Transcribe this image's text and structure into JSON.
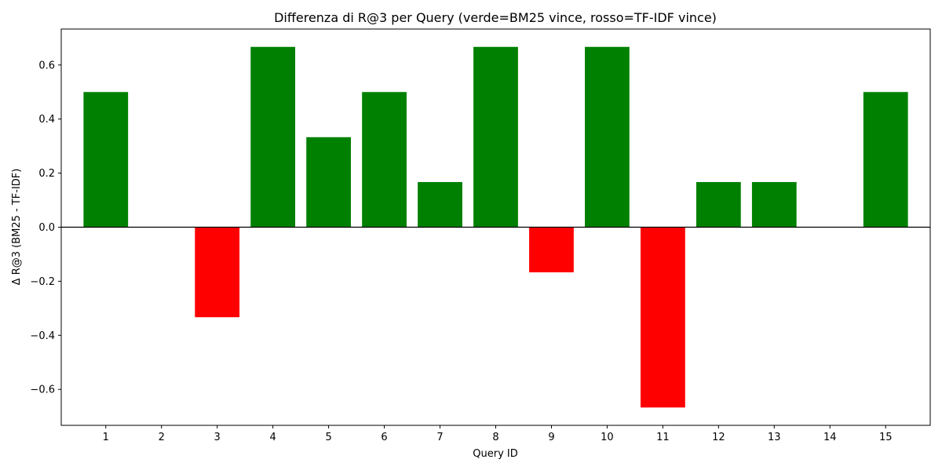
{
  "chart_data": {
    "type": "bar",
    "title": "Differenza di R@3 per Query (verde=BM25 vince, rosso=TF-IDF vince)",
    "xlabel": "Query ID",
    "ylabel": "Δ R@3 (BM25 - TF-IDF)",
    "categories": [
      "1",
      "2",
      "3",
      "4",
      "5",
      "6",
      "7",
      "8",
      "9",
      "10",
      "11",
      "12",
      "13",
      "14",
      "15"
    ],
    "values": [
      0.5,
      0.0,
      -0.333,
      0.667,
      0.333,
      0.5,
      0.167,
      0.667,
      -0.167,
      0.667,
      -0.667,
      0.167,
      0.167,
      0.0,
      0.5
    ],
    "ylim": [
      -0.733,
      0.733
    ],
    "yticks": [
      -0.6,
      -0.4,
      -0.2,
      0.0,
      0.2,
      0.4,
      0.6
    ],
    "ytick_labels": [
      "−0.6",
      "−0.4",
      "−0.2",
      "0.0",
      "0.2",
      "0.4",
      "0.6"
    ],
    "grid": false,
    "colors": {
      "positive": "#008000",
      "negative": "#ff0000",
      "axes": "#000000",
      "zero_line": "#000000"
    }
  }
}
